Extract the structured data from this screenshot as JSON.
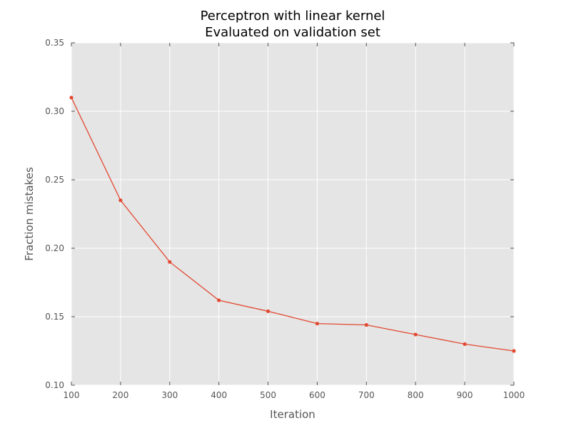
{
  "chart_data": {
    "type": "line",
    "title": "Perceptron with linear kernel",
    "subtitle": "Evaluated on validation set",
    "xlabel": "Iteration",
    "ylabel": "Fraction mistakes",
    "xlim": [
      100,
      1000
    ],
    "ylim": [
      0.1,
      0.35
    ],
    "x_ticks": [
      "100",
      "200",
      "300",
      "400",
      "500",
      "600",
      "700",
      "800",
      "900",
      "1000"
    ],
    "y_ticks": [
      "0.10",
      "0.15",
      "0.20",
      "0.25",
      "0.30",
      "0.35"
    ],
    "grid": true,
    "series": [
      {
        "x": [
          100,
          200,
          300,
          400,
          500,
          600,
          700,
          800,
          900,
          1000
        ],
        "values": [
          0.31,
          0.235,
          0.19,
          0.162,
          0.154,
          0.145,
          0.144,
          0.137,
          0.13,
          0.125
        ],
        "color": "#e24a33"
      }
    ],
    "plot_background": "#e5e5e5",
    "grid_color": "#ffffff"
  }
}
